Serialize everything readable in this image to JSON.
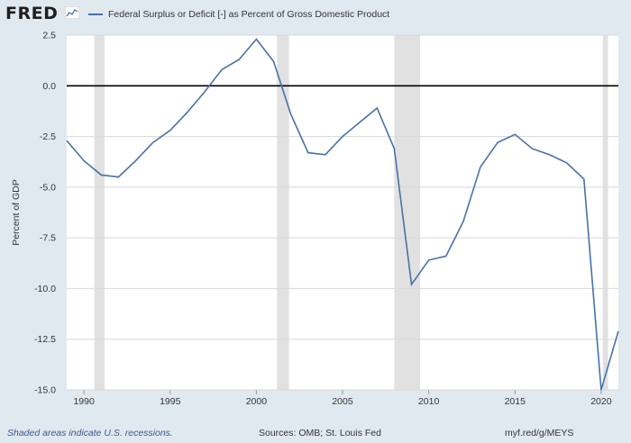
{
  "header": {
    "logo_text": "FRED",
    "logo_badge_icon": "chart-line-icon"
  },
  "footer": {
    "note": "Shaded areas indicate U.S. recessions.",
    "source": "Sources: OMB; St. Louis Fed",
    "link": "myf.red/g/MEYS"
  },
  "colors": {
    "background": "#e1e9f0",
    "plot_background": "#ffffff",
    "series_line": "#4572a7",
    "recession_shade": "#e1e1e1",
    "zero_line": "#000000",
    "grid": "#d8d8d8"
  },
  "chart_data": {
    "type": "line",
    "title": "",
    "xlabel": "",
    "ylabel": "Percent of GDP",
    "xlim": [
      1989,
      2021
    ],
    "ylim": [
      -15,
      2.5
    ],
    "x_ticks": [
      1990,
      1995,
      2000,
      2005,
      2010,
      2015,
      2020
    ],
    "x_tick_labels": [
      "1990",
      "1995",
      "2000",
      "2005",
      "2010",
      "2015",
      "2020"
    ],
    "y_ticks": [
      2.5,
      0,
      -2.5,
      -5,
      -7.5,
      -10,
      -12.5,
      -15
    ],
    "y_tick_labels": [
      "2.5",
      "0.0",
      "-2.5",
      "-5.0",
      "-7.5",
      "-10.0",
      "-12.5",
      "-15.0"
    ],
    "grid": "horizontal",
    "legend_position": "top-left",
    "reference_line": 0,
    "recessions": [
      {
        "start": 1990.6,
        "end": 1991.2
      },
      {
        "start": 2001.2,
        "end": 2001.9
      },
      {
        "start": 2008.0,
        "end": 2009.5
      },
      {
        "start": 2020.1,
        "end": 2020.4
      }
    ],
    "series": [
      {
        "name": "Federal Surplus or Deficit [-] as Percent of Gross Domestic Product",
        "x": [
          1989,
          1990,
          1991,
          1992,
          1993,
          1994,
          1995,
          1996,
          1997,
          1998,
          1999,
          2000,
          2001,
          2002,
          2003,
          2004,
          2005,
          2006,
          2007,
          2008,
          2009,
          2010,
          2011,
          2012,
          2013,
          2014,
          2015,
          2016,
          2017,
          2018,
          2019,
          2020,
          2021
        ],
        "y": [
          -2.7,
          -3.7,
          -4.4,
          -4.5,
          -3.7,
          -2.8,
          -2.2,
          -1.3,
          -0.3,
          0.8,
          1.3,
          2.3,
          1.2,
          -1.4,
          -3.3,
          -3.4,
          -2.5,
          -1.8,
          -1.1,
          -3.1,
          -9.8,
          -8.6,
          -8.4,
          -6.7,
          -4.0,
          -2.8,
          -2.4,
          -3.1,
          -3.4,
          -3.8,
          -4.6,
          -15.0,
          -12.1
        ]
      }
    ]
  }
}
